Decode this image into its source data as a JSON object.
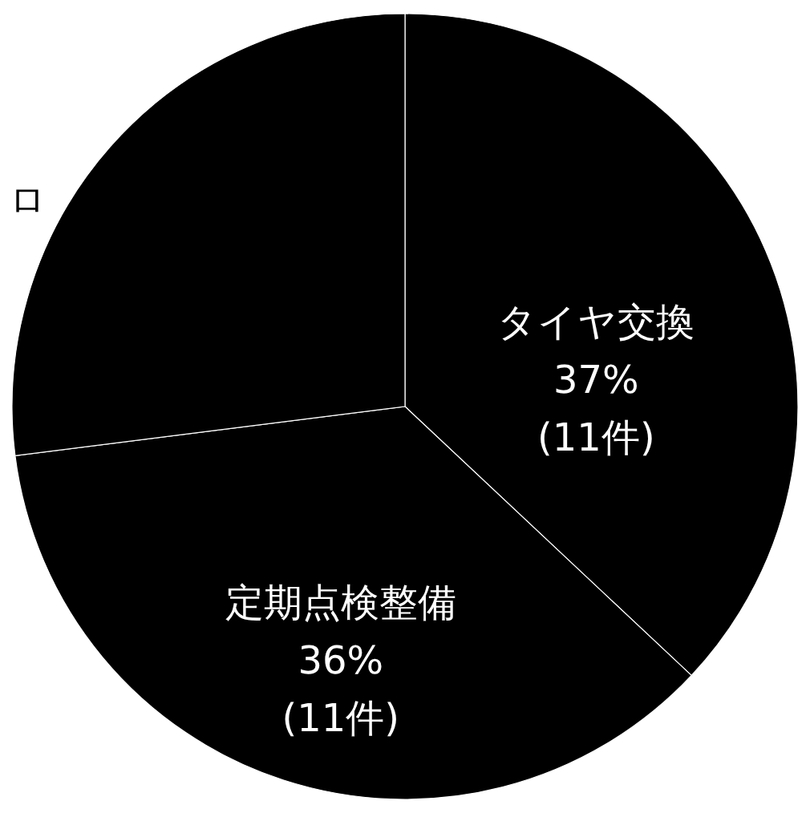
{
  "chart_data": {
    "type": "pie",
    "categories": [
      "タイヤ交換",
      "定期点検整備",
      null
    ],
    "values": [
      37,
      36,
      27
    ],
    "colors": [
      "#000000",
      "#000000",
      "#000000"
    ],
    "value_labels": [
      "37%\n(11件)",
      "36%\n(11件)",
      null
    ],
    "annotations": [
      "ロ"
    ],
    "legend": false
  }
}
